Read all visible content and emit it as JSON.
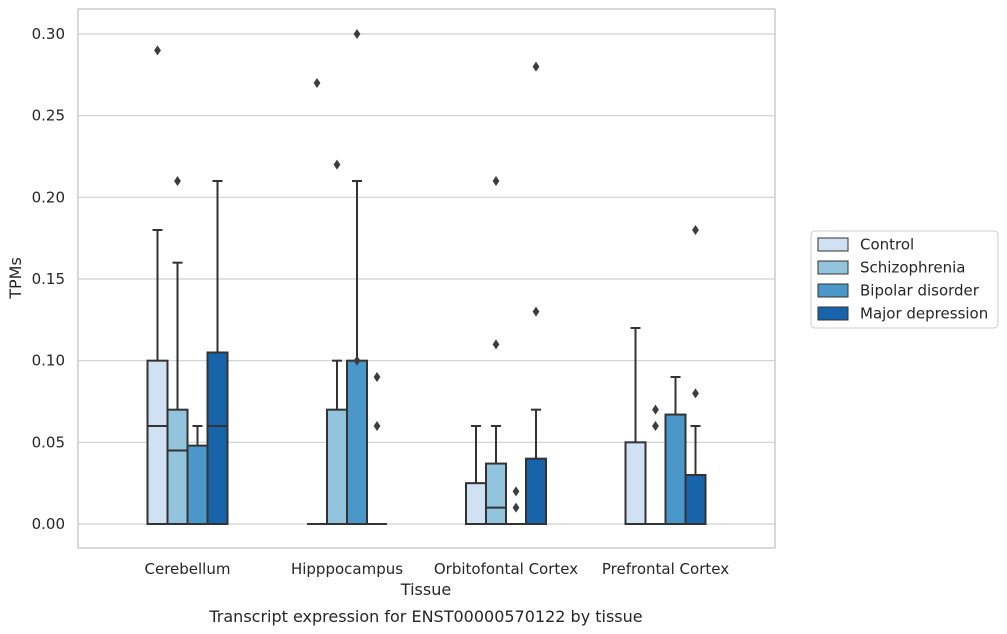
{
  "caption": "Transcript expression for ENST00000570122 by tissue",
  "colors": {
    "Control": "#cfe1f2",
    "Schizophrenia": "#93c4de",
    "Bipolar disorder": "#4a98c9",
    "Major depression": "#1764ab",
    "box_edge": "#333333",
    "grid": "#d0d0d0",
    "frame": "#cccccc"
  },
  "chart_data": {
    "type": "box",
    "title": "",
    "xlabel": "Tissue",
    "ylabel": "TPMs",
    "ylim": [
      -0.015,
      0.315
    ],
    "yticks": [
      0.0,
      0.05,
      0.1,
      0.15,
      0.2,
      0.25,
      0.3
    ],
    "ytick_labels": [
      "0.00",
      "0.05",
      "0.10",
      "0.15",
      "0.20",
      "0.25",
      "0.30"
    ],
    "grid": "horizontal",
    "legend_position": "right",
    "categories": [
      "Cerebellum",
      "Hipppocampus",
      "Orbitofontal Cortex",
      "Prefrontal Cortex"
    ],
    "series": [
      {
        "name": "Control",
        "boxes": [
          {
            "q1": 0.0,
            "median": 0.06,
            "q3": 0.1,
            "whisker_low": 0.0,
            "whisker_high": 0.18,
            "outliers": [
              0.29
            ]
          },
          {
            "q1": 0.0,
            "median": 0.0,
            "q3": 0.0,
            "whisker_low": 0.0,
            "whisker_high": 0.0,
            "outliers": [
              0.27
            ]
          },
          {
            "q1": 0.0,
            "median": 0.0,
            "q3": 0.025,
            "whisker_low": 0.0,
            "whisker_high": 0.06,
            "outliers": []
          },
          {
            "q1": 0.0,
            "median": 0.0,
            "q3": 0.05,
            "whisker_low": 0.0,
            "whisker_high": 0.12,
            "outliers": []
          }
        ]
      },
      {
        "name": "Schizophrenia",
        "boxes": [
          {
            "q1": 0.0,
            "median": 0.045,
            "q3": 0.07,
            "whisker_low": 0.0,
            "whisker_high": 0.16,
            "outliers": [
              0.21
            ]
          },
          {
            "q1": 0.0,
            "median": 0.0,
            "q3": 0.07,
            "whisker_low": 0.0,
            "whisker_high": 0.1,
            "outliers": [
              0.22
            ]
          },
          {
            "q1": 0.0,
            "median": 0.01,
            "q3": 0.037,
            "whisker_low": 0.0,
            "whisker_high": 0.06,
            "outliers": [
              0.11,
              0.21
            ]
          },
          {
            "q1": 0.0,
            "median": 0.0,
            "q3": 0.0,
            "whisker_low": 0.0,
            "whisker_high": 0.0,
            "outliers": [
              0.06,
              0.07
            ]
          }
        ]
      },
      {
        "name": "Bipolar disorder",
        "boxes": [
          {
            "q1": 0.0,
            "median": 0.0,
            "q3": 0.048,
            "whisker_low": 0.0,
            "whisker_high": 0.06,
            "outliers": []
          },
          {
            "q1": 0.0,
            "median": 0.0,
            "q3": 0.1,
            "whisker_low": 0.0,
            "whisker_high": 0.21,
            "outliers": [
              0.1,
              0.3
            ]
          },
          {
            "q1": 0.0,
            "median": 0.0,
            "q3": 0.0,
            "whisker_low": 0.0,
            "whisker_high": 0.0,
            "outliers": [
              0.01,
              0.02
            ]
          },
          {
            "q1": 0.0,
            "median": 0.0,
            "q3": 0.067,
            "whisker_low": 0.0,
            "whisker_high": 0.09,
            "outliers": []
          }
        ]
      },
      {
        "name": "Major depression",
        "boxes": [
          {
            "q1": 0.0,
            "median": 0.06,
            "q3": 0.105,
            "whisker_low": 0.0,
            "whisker_high": 0.21,
            "outliers": []
          },
          {
            "q1": 0.0,
            "median": 0.0,
            "q3": 0.0,
            "whisker_low": 0.0,
            "whisker_high": 0.0,
            "outliers": [
              0.06,
              0.09
            ]
          },
          {
            "q1": 0.0,
            "median": 0.0,
            "q3": 0.04,
            "whisker_low": 0.0,
            "whisker_high": 0.07,
            "outliers": [
              0.13,
              0.28
            ]
          },
          {
            "q1": 0.0,
            "median": 0.0,
            "q3": 0.03,
            "whisker_low": 0.0,
            "whisker_high": 0.06,
            "outliers": [
              0.08,
              0.18
            ]
          }
        ]
      }
    ]
  }
}
